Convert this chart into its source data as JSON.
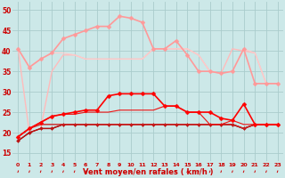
{
  "background_color": "#cce8e8",
  "grid_color": "#aacccc",
  "xlabel": "Vent moyen/en rafales ( km/h )",
  "xlabel_color": "#cc0000",
  "tick_color": "#cc0000",
  "xlim": [
    -0.5,
    23.5
  ],
  "ylim": [
    13,
    52
  ],
  "yticks": [
    15,
    20,
    25,
    30,
    35,
    40,
    45,
    50
  ],
  "xtick_labels": [
    "0",
    "1",
    "2",
    "3",
    "4",
    "5",
    "6",
    "7",
    "8",
    "9",
    "10",
    "11",
    "12",
    "13",
    "14",
    "15",
    "16",
    "17",
    "18",
    "19",
    "20",
    "21",
    "22",
    "23"
  ],
  "series": [
    {
      "y": [
        40.5,
        20.0,
        21.0,
        35.0,
        39.0,
        39.0,
        38.0,
        38.0,
        38.0,
        38.0,
        38.0,
        38.0,
        40.5,
        40.5,
        40.5,
        40.5,
        39.0,
        35.0,
        34.5,
        40.5,
        40.0,
        39.5,
        32.0,
        32.0
      ],
      "color": "#ffbbbb",
      "marker": null,
      "linewidth": 1.0,
      "zorder": 2
    },
    {
      "y": [
        40.5,
        36.0,
        38.0,
        39.5,
        43.0,
        44.0,
        45.0,
        46.0,
        46.0,
        48.5,
        48.0,
        47.0,
        40.5,
        40.5,
        42.5,
        39.0,
        35.0,
        35.0,
        34.5,
        35.0,
        40.5,
        32.0,
        32.0,
        32.0
      ],
      "color": "#ff9999",
      "marker": "D",
      "markersize": 2.5,
      "linewidth": 1.2,
      "zorder": 3
    },
    {
      "y": [
        40.5,
        36.0,
        38.0,
        39.5,
        39.5,
        39.0,
        38.0,
        38.0,
        38.0,
        38.0,
        38.0,
        38.0,
        40.5,
        40.5,
        40.5,
        40.5,
        39.0,
        35.0,
        34.5,
        35.0,
        40.5,
        39.5,
        32.0,
        32.0
      ],
      "color": "#ffcccc",
      "marker": null,
      "linewidth": 0.8,
      "zorder": 2
    },
    {
      "y": [
        19.0,
        21.0,
        22.0,
        22.0,
        22.0,
        22.0,
        22.0,
        22.0,
        22.0,
        22.0,
        22.0,
        22.0,
        22.0,
        22.0,
        22.0,
        22.0,
        22.0,
        22.0,
        22.0,
        22.0,
        21.0,
        22.0,
        22.0,
        22.0
      ],
      "color": "#cc2222",
      "marker": null,
      "linewidth": 1.0,
      "zorder": 4
    },
    {
      "y": [
        19.0,
        21.0,
        22.5,
        24.0,
        24.5,
        25.0,
        25.5,
        25.5,
        29.0,
        29.5,
        29.5,
        29.5,
        29.5,
        26.5,
        26.5,
        25.0,
        25.0,
        25.0,
        23.5,
        23.0,
        27.0,
        22.0,
        22.0,
        22.0
      ],
      "color": "#ff0000",
      "marker": "D",
      "markersize": 2.5,
      "linewidth": 1.2,
      "zorder": 5
    },
    {
      "y": [
        19.0,
        21.0,
        22.5,
        24.0,
        24.5,
        24.5,
        25.0,
        25.0,
        25.0,
        25.5,
        25.5,
        25.5,
        25.5,
        26.5,
        26.5,
        25.0,
        25.0,
        22.0,
        22.0,
        23.0,
        22.0,
        22.0,
        22.0,
        22.0
      ],
      "color": "#ee1111",
      "marker": null,
      "linewidth": 0.8,
      "zorder": 4
    },
    {
      "y": [
        18.0,
        20.0,
        21.0,
        21.0,
        22.0,
        22.0,
        22.0,
        22.0,
        22.0,
        22.0,
        22.0,
        22.0,
        22.0,
        22.0,
        22.0,
        22.0,
        22.0,
        22.0,
        22.0,
        22.0,
        21.0,
        22.0,
        22.0,
        22.0
      ],
      "color": "#990000",
      "marker": null,
      "linewidth": 1.0,
      "zorder": 3
    },
    {
      "y": [
        18.0,
        20.0,
        21.0,
        21.0,
        22.0,
        22.0,
        22.0,
        22.0,
        22.0,
        22.0,
        22.0,
        22.0,
        22.0,
        22.0,
        22.0,
        22.0,
        22.0,
        22.0,
        22.0,
        22.0,
        21.0,
        22.0,
        22.0,
        22.0
      ],
      "color": "#bb1111",
      "marker": "D",
      "markersize": 2.0,
      "linewidth": 0.8,
      "zorder": 3
    }
  ],
  "n_points": 24
}
